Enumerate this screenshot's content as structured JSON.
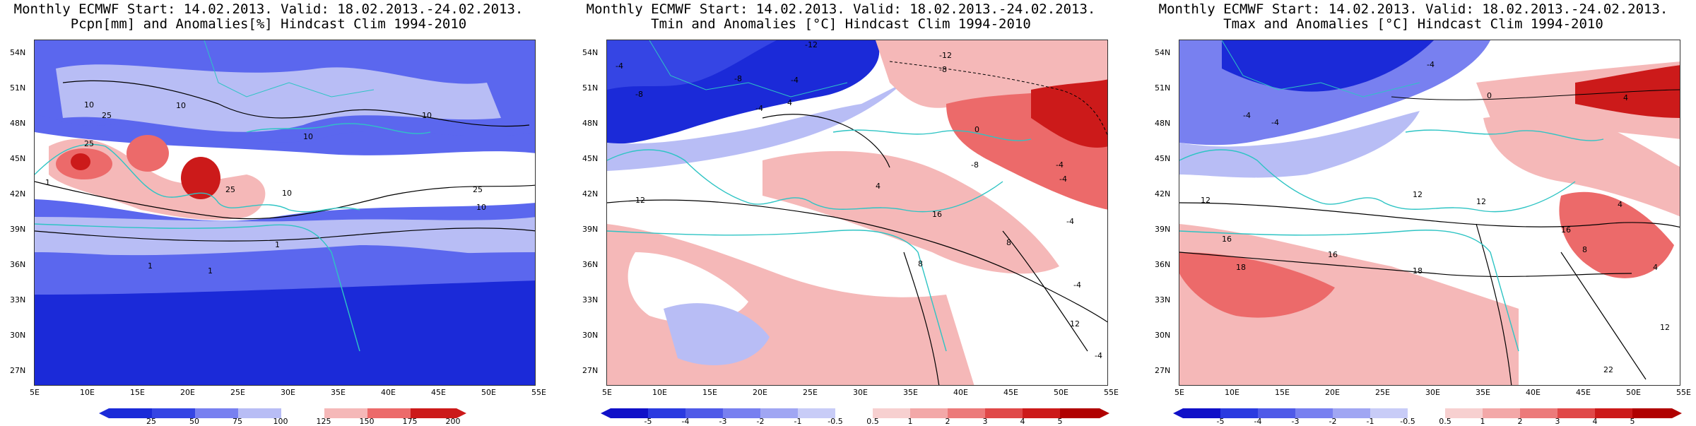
{
  "panels": [
    {
      "title_line1": "Monthly ECMWF Start: 14.02.2013. Valid: 18.02.2013.-24.02.2013.",
      "title_line2": "Pcpn[mm] and Anomalies[%] Hindcast Clim 1994-2010",
      "colorbar": [
        "25",
        "50",
        "75",
        "100",
        "125",
        "150",
        "175",
        "200"
      ],
      "contour_labels": [
        "10",
        "25",
        "10",
        "25",
        "10",
        "10",
        "25",
        "10",
        "1",
        "1",
        "1",
        "10",
        "25",
        "1"
      ]
    },
    {
      "title_line1": "Monthly ECMWF Start: 14.02.2013. Valid: 18.02.2013.-24.02.2013.",
      "title_line2": "Tmin and Anomalies [°C] Hindcast Clim 1994-2010",
      "colorbar": [
        "-5",
        "-4",
        "-3",
        "-2",
        "-1",
        "-0.5",
        "0.5",
        "1",
        "2",
        "3",
        "4",
        "5"
      ],
      "contour_labels": [
        "-4",
        "-8",
        "-12",
        "-8",
        "-4",
        "-4",
        "-8",
        "-8",
        "-4",
        "0",
        "-12",
        "-4",
        "-4",
        "4",
        "8",
        "12",
        "8",
        "-4",
        "4",
        "12",
        "16",
        "-4"
      ]
    },
    {
      "title_line1": "Monthly ECMWF Start: 14.02.2013. Valid: 18.02.2013.-24.02.2013.",
      "title_line2": "Tmax and Anomalies [°C] Hindcast Clim 1994-2010",
      "colorbar": [
        "-5",
        "-4",
        "-3",
        "-2",
        "-1",
        "-0.5",
        "0.5",
        "1",
        "2",
        "3",
        "4",
        "5"
      ],
      "contour_labels": [
        "-4",
        "0",
        "-4",
        "-4",
        "4",
        "12",
        "12",
        "16",
        "18",
        "16",
        "18",
        "12",
        "16",
        "8",
        "4",
        "22",
        "12",
        "4"
      ]
    }
  ],
  "lat_labels": [
    "54N",
    "51N",
    "48N",
    "45N",
    "42N",
    "39N",
    "36N",
    "33N",
    "30N",
    "27N"
  ],
  "lon_labels": [
    "5E",
    "10E",
    "15E",
    "20E",
    "25E",
    "30E",
    "35E",
    "40E",
    "45E",
    "50E",
    "55E"
  ],
  "colors": {
    "coast": "#2ec4c4",
    "contour": "#000000",
    "blue_dark": "#1b2ad8",
    "blue_mid": "#5b67ee",
    "blue_light": "#b8bdf5",
    "red_light": "#f5b8b8",
    "red_mid": "#ec6a6a",
    "red_dark": "#cc1a1a"
  }
}
